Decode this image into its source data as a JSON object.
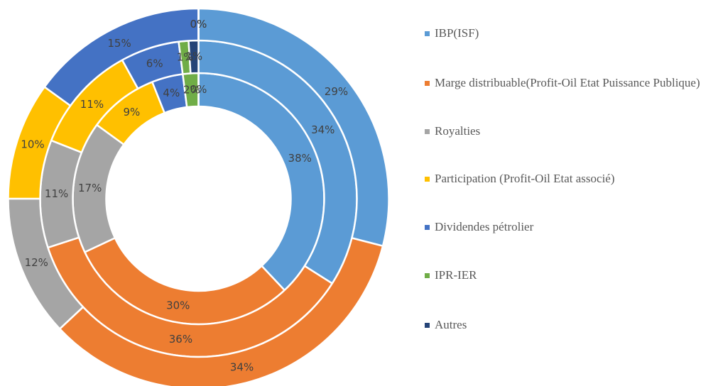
{
  "chart_data": {
    "type": "donut",
    "categories": [
      "IBP(ISF)",
      "Marge distribuable(Profit-Oil Etat Puissance Publique)",
      "Royalties",
      "Participation (Profit-Oil Etat associé)",
      "Dividendes pétrolier",
      "IPR-IER",
      "Autres"
    ],
    "colors": [
      "#5b9bd5",
      "#ed7d31",
      "#a5a5a5",
      "#ffc000",
      "#4472c4",
      "#70ad47",
      "#264478"
    ],
    "legend": "right",
    "series": [
      {
        "values": [
          38,
          30,
          17,
          9,
          4,
          2,
          0
        ],
        "value_labels": [
          "38%",
          "30%",
          "17%",
          "9%",
          "4%",
          "2%",
          "0%"
        ]
      },
      {
        "values": [
          34,
          36,
          11,
          11,
          6,
          1,
          1
        ],
        "value_labels": [
          "34%",
          "36%",
          "11%",
          "11%",
          "6%",
          "1%",
          "1%"
        ]
      },
      {
        "values": [
          29,
          34,
          12,
          10,
          15,
          0,
          0
        ],
        "value_labels": [
          "29%",
          "34%",
          "12%",
          "10%",
          "15%",
          "0%",
          "0%"
        ]
      }
    ]
  }
}
